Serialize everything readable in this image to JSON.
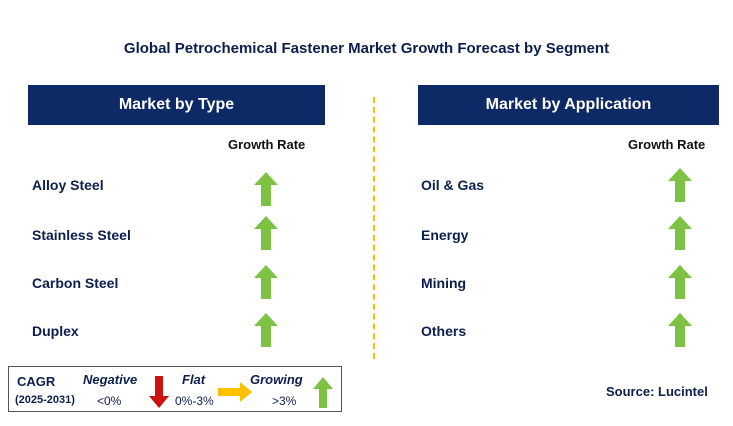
{
  "title": "Global Petrochemical Fastener Market Growth Forecast by Segment",
  "left_panel": {
    "header": "Market by Type",
    "growth_label": "Growth Rate",
    "rows": [
      {
        "label": "Alloy Steel",
        "trend": "growing"
      },
      {
        "label": "Stainless Steel",
        "trend": "growing"
      },
      {
        "label": "Carbon Steel",
        "trend": "growing"
      },
      {
        "label": "Duplex",
        "trend": "growing"
      }
    ]
  },
  "right_panel": {
    "header": "Market by Application",
    "growth_label": "Growth Rate",
    "rows": [
      {
        "label": "Oil & Gas",
        "trend": "growing"
      },
      {
        "label": "Energy",
        "trend": "growing"
      },
      {
        "label": "Mining",
        "trend": "growing"
      },
      {
        "label": "Others",
        "trend": "growing"
      }
    ]
  },
  "legend": {
    "cagr_label": "CAGR",
    "period": "(2025-2031)",
    "negative": {
      "label": "Negative",
      "range": "<0%",
      "icon": "red-down-arrow-icon"
    },
    "flat": {
      "label": "Flat",
      "range": "0%-3%",
      "icon": "orange-right-arrow-icon"
    },
    "growing": {
      "label": "Growing",
      "range": ">3%",
      "icon": "green-up-arrow-icon"
    }
  },
  "source": "Source: Lucintel",
  "colors": {
    "header_bg": "#0d2a66",
    "text": "#0b1f4d",
    "growing": "#7dc242",
    "negative": "#cc1111",
    "flat": "#ffc000",
    "divider": "#f2c200"
  }
}
